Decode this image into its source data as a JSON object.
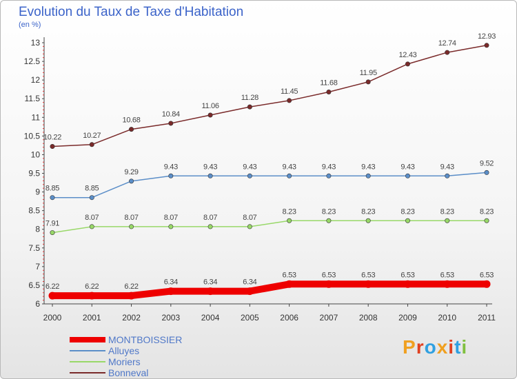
{
  "header": {
    "title": "Evolution du Taux de Taxe d'Habitation",
    "unit": "(en %)"
  },
  "logo": {
    "text": "Proxiti",
    "colors": [
      "#f0a020",
      "#e04020",
      "#30a0e0",
      "#f0a020",
      "#e04020",
      "#30a0e0",
      "#80c040"
    ]
  },
  "chart_data": {
    "type": "line",
    "title": "Evolution du Taux de Taxe d'Habitation",
    "ylabel": "(en %)",
    "xlabel": "",
    "x": [
      "2000",
      "2001",
      "2002",
      "2003",
      "2004",
      "2005",
      "2006",
      "2007",
      "2008",
      "2009",
      "2010",
      "2011"
    ],
    "ylim": [
      6,
      13
    ],
    "yticks": [
      "6",
      "6.5",
      "7",
      "7.5",
      "8",
      "8.5",
      "9",
      "9.5",
      "10",
      "10.5",
      "11",
      "11.5",
      "12",
      "12.5",
      "13"
    ],
    "grid": false,
    "legend_position": "bottom-left",
    "series": [
      {
        "name": "MONTBOISSIER",
        "color": "#ee0000",
        "values": [
          6.22,
          6.22,
          6.22,
          6.34,
          6.34,
          6.34,
          6.53,
          6.53,
          6.53,
          6.53,
          6.53,
          6.53
        ],
        "labels": [
          "6.22",
          "6.22",
          "6.22",
          "6.34",
          "6.34",
          "6.34",
          "6.53",
          "6.53",
          "6.53",
          "6.53",
          "6.53",
          "6.53"
        ]
      },
      {
        "name": "Alluyes",
        "color": "#5b8ec8",
        "values": [
          8.85,
          8.85,
          9.29,
          9.43,
          9.43,
          9.43,
          9.43,
          9.43,
          9.43,
          9.43,
          9.43,
          9.52
        ],
        "labels": [
          "8.85",
          "8.85",
          "9.29",
          "9.43",
          "9.43",
          "9.43",
          "9.43",
          "9.43",
          "9.43",
          "9.43",
          "9.43",
          "9.52"
        ]
      },
      {
        "name": "Moriers",
        "color": "#98d868",
        "values": [
          7.91,
          8.07,
          8.07,
          8.07,
          8.07,
          8.07,
          8.23,
          8.23,
          8.23,
          8.23,
          8.23,
          8.23
        ],
        "labels": [
          "7.91",
          "8.07",
          "8.07",
          "8.07",
          "8.07",
          "8.07",
          "8.23",
          "8.23",
          "8.23",
          "8.23",
          "8.23",
          "8.23"
        ]
      },
      {
        "name": "Bonneval",
        "color": "#7a2a2a",
        "values": [
          10.22,
          10.27,
          10.68,
          10.84,
          11.06,
          11.28,
          11.45,
          11.68,
          11.95,
          12.43,
          12.74,
          12.93
        ],
        "labels": [
          "10.22",
          "10.27",
          "10.68",
          "10.84",
          "11.06",
          "11.28",
          "11.45",
          "11.68",
          "11.95",
          "12.43",
          "12.74",
          "12.93"
        ]
      }
    ]
  }
}
